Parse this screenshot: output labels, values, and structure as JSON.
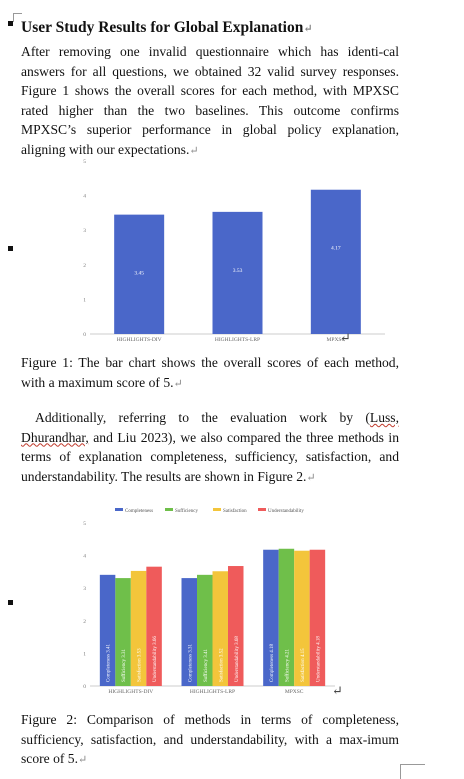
{
  "heading": "User Study Results for Global Explanation",
  "para1": "After removing one invalid questionnaire which has identi-cal answers for all questions, we obtained 32 valid survey responses. Figure 1 shows the overall scores for each method, with MPXSC rated higher than the two baselines. This outcome confirms MPXSC’s superior performance in global policy explanation, aligning with our expectations.",
  "para2_pre": "Additionally, referring to the evaluation work by (",
  "para2_cite": "Luss, Dhurandhar,",
  "para2_post": " and Liu 2023), we also compared the three methods in terms of explanation completeness, sufficiency, satisfaction, and understandability. The results are shown in Figure 2.",
  "caption1": "Figure 1: The bar chart shows the overall scores of each method, with a maximum score of 5.",
  "caption2": "Figure 2: Comparison of methods in terms of completeness, sufficiency, satisfaction, and understandability, with a max-imum score of 5.",
  "return_mark": "↵",
  "enter_mark": "↵",
  "colors": {
    "bar": "#4a67c9",
    "completeness": "#4a67c9",
    "sufficiency": "#6fbf4a",
    "satisfaction": "#f3c53b",
    "understandability": "#ef5b5b"
  },
  "chart_data": [
    {
      "type": "bar",
      "categories": [
        "HIGHLIGHTS-DIV",
        "HIGHLIGHTS-LRP",
        "MPXSC"
      ],
      "values": [
        3.45,
        3.53,
        4.17
      ],
      "ylim": [
        0,
        5
      ],
      "yticks": [
        "0",
        "1",
        "2",
        "3",
        "4",
        "5"
      ],
      "grid": false
    },
    {
      "type": "bar",
      "categories": [
        "HIGHLIGHTS-DIV",
        "HIGHLIGHTS-LRP",
        "MPXSC"
      ],
      "series": [
        {
          "name": "Completeness",
          "values": [
            3.41,
            3.31,
            4.18
          ]
        },
        {
          "name": "Sufficiency",
          "values": [
            3.31,
            3.41,
            4.21
          ]
        },
        {
          "name": "Satisfaction",
          "values": [
            3.53,
            3.52,
            4.15
          ]
        },
        {
          "name": "Understandability",
          "values": [
            3.66,
            3.68,
            4.18
          ]
        }
      ],
      "label_names": [
        "Completeness",
        "Sufficiency",
        "Satisfaction",
        "Understandability"
      ],
      "ylim": [
        0,
        5
      ],
      "yticks": [
        "0",
        "1",
        "2",
        "3",
        "4",
        "5"
      ],
      "legend": "top",
      "grid": false
    }
  ]
}
